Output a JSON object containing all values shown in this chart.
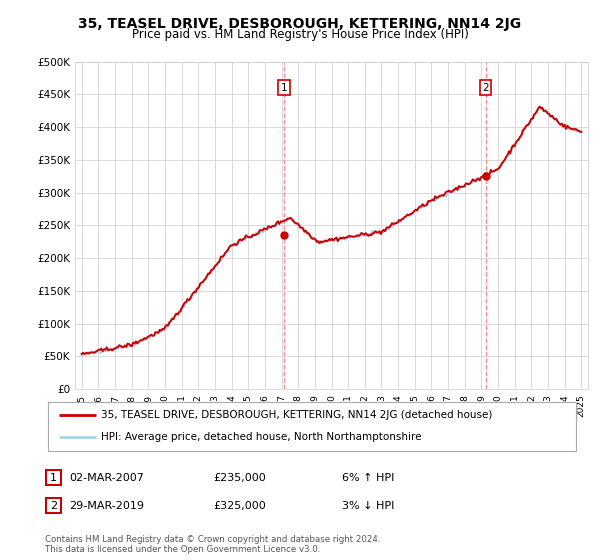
{
  "title": "35, TEASEL DRIVE, DESBOROUGH, KETTERING, NN14 2JG",
  "subtitle": "Price paid vs. HM Land Registry's House Price Index (HPI)",
  "ylim": [
    0,
    500000
  ],
  "yticks": [
    0,
    50000,
    100000,
    150000,
    200000,
    250000,
    300000,
    350000,
    400000,
    450000,
    500000
  ],
  "ytick_labels": [
    "£0",
    "£50K",
    "£100K",
    "£150K",
    "£200K",
    "£250K",
    "£300K",
    "£350K",
    "£400K",
    "£450K",
    "£500K"
  ],
  "x_start_year": 1995,
  "x_end_year": 2025,
  "hpi_color": "#aad4f0",
  "price_color": "#cc0000",
  "vline_color": "#ff8888",
  "marker_color": "#cc0000",
  "transaction1_year": 2007.17,
  "transaction1_price": 235000,
  "transaction2_year": 2019.25,
  "transaction2_price": 325000,
  "transaction1_date": "02-MAR-2007",
  "transaction2_date": "29-MAR-2019",
  "transaction1_hpi_pct": "6% ↑ HPI",
  "transaction2_hpi_pct": "3% ↓ HPI",
  "footer": "Contains HM Land Registry data © Crown copyright and database right 2024.\nThis data is licensed under the Open Government Licence v3.0.",
  "legend_line1": "35, TEASEL DRIVE, DESBOROUGH, KETTERING, NN14 2JG (detached house)",
  "legend_line2": "HPI: Average price, detached house, North Northamptonshire",
  "background_color": "#ffffff",
  "grid_color": "#cccccc"
}
